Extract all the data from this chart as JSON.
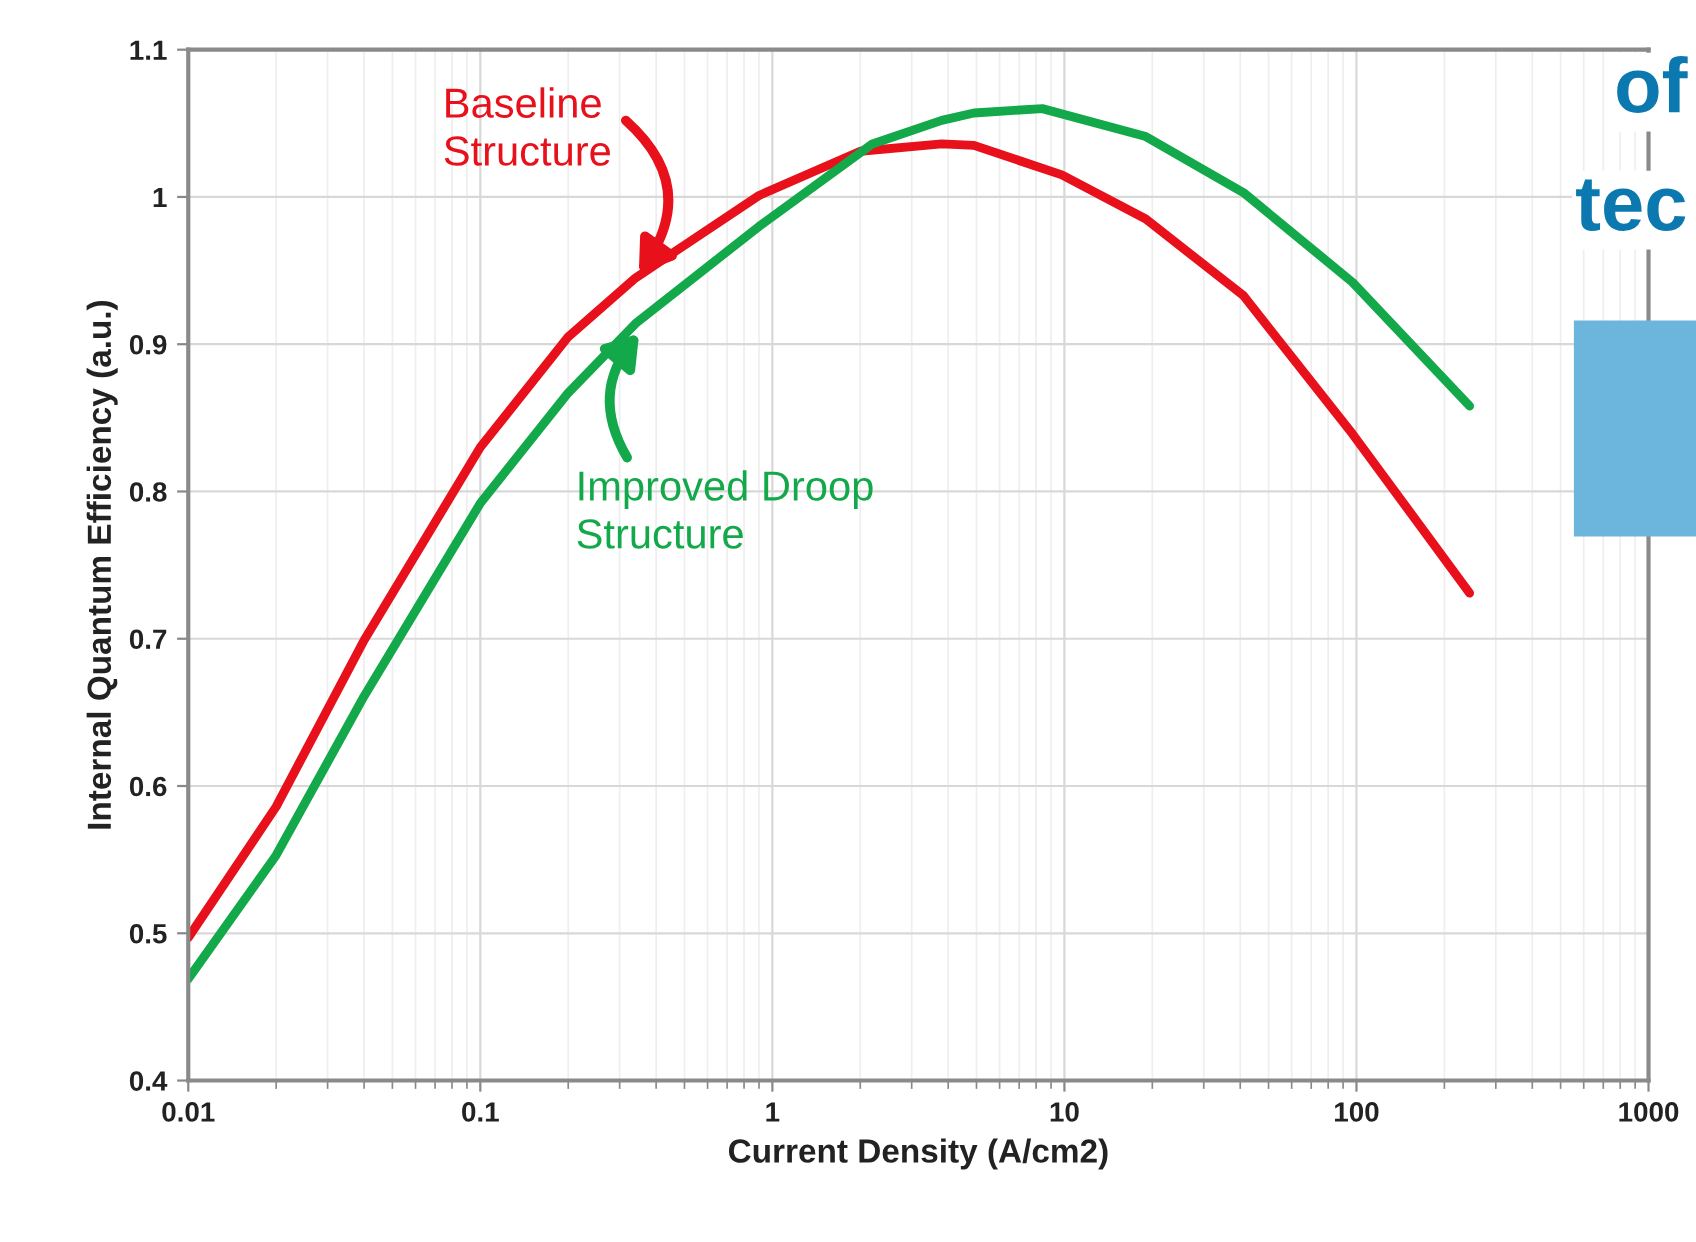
{
  "chart_data": {
    "type": "line",
    "xlabel": "Current Density (A/cm2)",
    "ylabel": "Internal Quantum Efficiency (a.u.)",
    "log": "x",
    "xlim": [
      0.01,
      1000
    ],
    "xticks": [
      0.01,
      0.1,
      1,
      10,
      100,
      1000
    ],
    "ylim": [
      0.4,
      1.1
    ],
    "yticks": [
      0.4,
      0.5,
      0.6,
      0.7,
      0.8,
      0.9,
      1,
      1.1
    ],
    "grid": true,
    "line_style": "solid",
    "marker": "none",
    "series": [
      {
        "color": "#e8101a",
        "x": [
          0.01,
          0.02,
          0.04,
          0.1,
          0.2,
          0.34,
          0.9,
          2,
          3.8,
          4.9,
          9.8,
          19,
          41,
          97,
          244
        ],
        "values": [
          0.497,
          0.586,
          0.699,
          0.83,
          0.905,
          0.945,
          1.001,
          1.031,
          1.036,
          1.035,
          1.015,
          0.985,
          0.933,
          0.839,
          0.731
        ]
      },
      {
        "color": "#13a84a",
        "x": [
          0.01,
          0.02,
          0.04,
          0.1,
          0.2,
          0.34,
          0.9,
          2.2,
          3.8,
          4.9,
          8.4,
          19,
          41,
          97,
          244
        ],
        "values": [
          0.469,
          0.553,
          0.661,
          0.792,
          0.867,
          0.914,
          0.98,
          1.036,
          1.052,
          1.057,
          1.06,
          1.041,
          1.003,
          0.942,
          0.858
        ]
      }
    ],
    "annotations": [
      {
        "text": "Baseline\nStructure",
        "x": 0.34,
        "y": 0.945
      },
      {
        "text": "Improved Droop\nStructure",
        "x": 0.36,
        "y": 0.91
      },
      "of",
      "tec"
    ]
  }
}
